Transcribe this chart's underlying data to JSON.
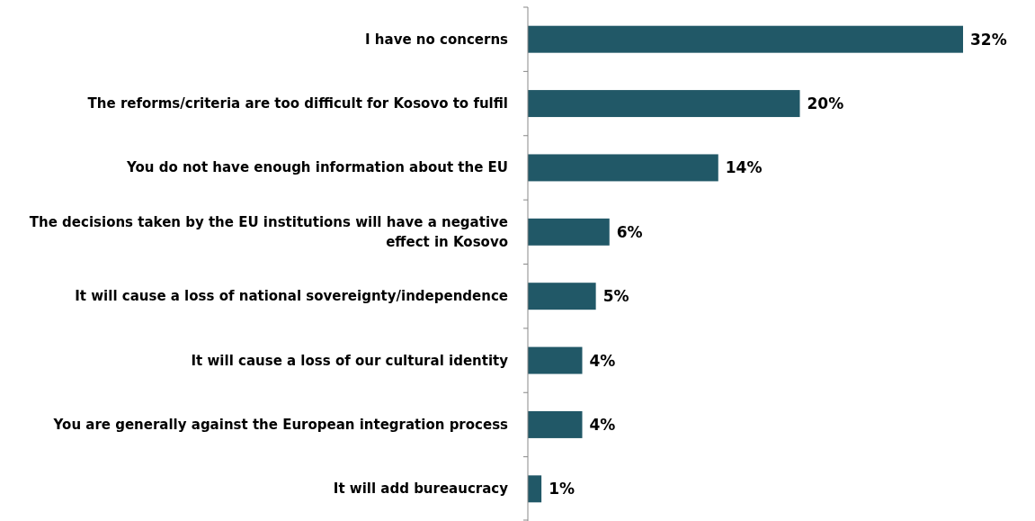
{
  "chart_data": {
    "type": "bar",
    "orientation": "horizontal",
    "categories": [
      "I have no concerns",
      "The reforms/criteria are too difficult for Kosovo to fulfil",
      "You do not have enough information about the EU",
      "The decisions taken by the EU institutions will have a negative effect in Kosovo",
      "It will cause a loss of national sovereignty/independence",
      "It will cause a loss of our cultural identity",
      "You are generally against the European integration process",
      "It will add bureaucracy"
    ],
    "values": [
      32,
      20,
      14,
      6,
      5,
      4,
      4,
      1
    ],
    "value_labels": [
      "32%",
      "20%",
      "14%",
      "6%",
      "5%",
      "4%",
      "4%",
      "1%"
    ],
    "color": "#215867"
  }
}
